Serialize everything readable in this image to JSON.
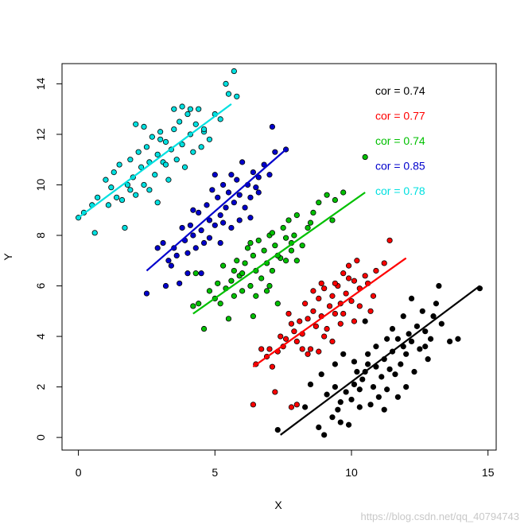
{
  "chart_data": {
    "type": "scatter",
    "xlabel": "X",
    "ylabel": "Y",
    "xlim": [
      -0.6,
      15.3
    ],
    "ylim": [
      -0.5,
      14.8
    ],
    "xticks": [
      0,
      5,
      10,
      15
    ],
    "yticks": [
      0,
      2,
      4,
      6,
      8,
      10,
      12,
      14
    ],
    "grid": false,
    "legend_position": "top-right",
    "series": [
      {
        "color": "#000000",
        "label": "cor = 0.74",
        "fit": [
          [
            7.4,
            0.1
          ],
          [
            14.7,
            6.0
          ]
        ],
        "points": [
          [
            7.3,
            0.3
          ],
          [
            8.3,
            1.2
          ],
          [
            8.8,
            0.4
          ],
          [
            9.0,
            0.1
          ],
          [
            9.3,
            0.8
          ],
          [
            9.5,
            1.1
          ],
          [
            9.6,
            0.6
          ],
          [
            9.9,
            0.5
          ],
          [
            8.5,
            2.1
          ],
          [
            8.9,
            2.5
          ],
          [
            9.1,
            1.7
          ],
          [
            9.4,
            2.0
          ],
          [
            9.6,
            1.4
          ],
          [
            9.8,
            1.8
          ],
          [
            10.0,
            1.5
          ],
          [
            10.1,
            2.1
          ],
          [
            10.2,
            2.6
          ],
          [
            10.3,
            1.9
          ],
          [
            10.4,
            2.3
          ],
          [
            10.5,
            2.6
          ],
          [
            10.6,
            2.9
          ],
          [
            10.7,
            1.3
          ],
          [
            10.8,
            2.0
          ],
          [
            10.9,
            2.8
          ],
          [
            11.0,
            1.6
          ],
          [
            11.1,
            2.4
          ],
          [
            11.2,
            3.1
          ],
          [
            11.3,
            1.9
          ],
          [
            11.4,
            2.7
          ],
          [
            11.5,
            3.4
          ],
          [
            11.6,
            2.5
          ],
          [
            11.7,
            3.9
          ],
          [
            11.8,
            2.9
          ],
          [
            11.9,
            3.6
          ],
          [
            12.0,
            3.3
          ],
          [
            12.1,
            4.1
          ],
          [
            12.2,
            3.8
          ],
          [
            12.3,
            2.6
          ],
          [
            12.4,
            4.4
          ],
          [
            12.5,
            3.5
          ],
          [
            12.6,
            5.0
          ],
          [
            12.7,
            4.2
          ],
          [
            12.8,
            3.1
          ],
          [
            12.9,
            3.9
          ],
          [
            13.0,
            4.8
          ],
          [
            13.1,
            5.3
          ],
          [
            13.2,
            6.0
          ],
          [
            13.3,
            4.5
          ],
          [
            13.6,
            3.8
          ],
          [
            13.9,
            3.9
          ],
          [
            14.7,
            5.9
          ],
          [
            12.2,
            5.5
          ],
          [
            11.9,
            4.8
          ],
          [
            10.5,
            4.6
          ],
          [
            10.9,
            3.6
          ],
          [
            11.3,
            3.9
          ],
          [
            10.1,
            3.0
          ],
          [
            9.7,
            3.3
          ],
          [
            10.6,
            3.3
          ],
          [
            11.5,
            4.3
          ],
          [
            12.0,
            2.0
          ],
          [
            11.2,
            1.1
          ],
          [
            10.3,
            1.2
          ],
          [
            9.4,
            2.9
          ],
          [
            12.7,
            3.6
          ],
          [
            11.7,
            1.6
          ]
        ]
      },
      {
        "color": "#ff0000",
        "label": "cor = 0.77",
        "fit": [
          [
            6.4,
            2.8
          ],
          [
            12.0,
            7.1
          ]
        ],
        "points": [
          [
            6.4,
            1.3
          ],
          [
            6.5,
            2.9
          ],
          [
            6.7,
            3.5
          ],
          [
            6.9,
            3.2
          ],
          [
            7.1,
            2.8
          ],
          [
            7.3,
            3.4
          ],
          [
            7.4,
            4.0
          ],
          [
            7.5,
            3.6
          ],
          [
            7.6,
            3.9
          ],
          [
            7.8,
            4.5
          ],
          [
            7.9,
            4.2
          ],
          [
            8.0,
            3.8
          ],
          [
            8.1,
            4.6
          ],
          [
            8.2,
            4.1
          ],
          [
            8.3,
            5.3
          ],
          [
            8.4,
            4.7
          ],
          [
            8.5,
            3.5
          ],
          [
            8.6,
            5.0
          ],
          [
            8.7,
            4.4
          ],
          [
            8.8,
            5.5
          ],
          [
            8.9,
            4.8
          ],
          [
            9.0,
            5.9
          ],
          [
            9.1,
            4.3
          ],
          [
            9.2,
            5.2
          ],
          [
            9.3,
            5.6
          ],
          [
            9.4,
            4.9
          ],
          [
            9.5,
            6.0
          ],
          [
            9.6,
            5.3
          ],
          [
            9.7,
            6.5
          ],
          [
            9.8,
            5.7
          ],
          [
            9.9,
            6.8
          ],
          [
            10.0,
            5.4
          ],
          [
            10.1,
            6.2
          ],
          [
            10.2,
            7.0
          ],
          [
            10.3,
            5.9
          ],
          [
            10.5,
            6.4
          ],
          [
            10.7,
            5.0
          ],
          [
            10.9,
            6.6
          ],
          [
            11.2,
            6.9
          ],
          [
            11.4,
            7.8
          ],
          [
            7.2,
            1.8
          ],
          [
            7.8,
            1.2
          ],
          [
            8.0,
            1.3
          ],
          [
            8.4,
            3.3
          ],
          [
            9.3,
            3.8
          ],
          [
            9.6,
            4.5
          ],
          [
            10.1,
            4.6
          ],
          [
            9.0,
            4.0
          ],
          [
            8.8,
            3.4
          ],
          [
            10.3,
            5.2
          ],
          [
            9.9,
            6.3
          ],
          [
            10.6,
            6.1
          ],
          [
            7.7,
            4.9
          ],
          [
            8.2,
            3.5
          ],
          [
            9.4,
            6.1
          ],
          [
            8.6,
            5.8
          ],
          [
            10.8,
            5.6
          ],
          [
            7.0,
            3.5
          ],
          [
            8.9,
            6.1
          ],
          [
            9.7,
            4.9
          ]
        ]
      },
      {
        "color": "#00c000",
        "label": "cor = 0.74",
        "fit": [
          [
            4.2,
            4.9
          ],
          [
            10.5,
            9.7
          ]
        ],
        "points": [
          [
            4.2,
            5.2
          ],
          [
            4.4,
            5.3
          ],
          [
            4.3,
            6.5
          ],
          [
            4.6,
            4.3
          ],
          [
            4.8,
            5.8
          ],
          [
            5.0,
            5.5
          ],
          [
            5.1,
            6.1
          ],
          [
            5.2,
            5.3
          ],
          [
            5.3,
            6.8
          ],
          [
            5.4,
            5.9
          ],
          [
            5.5,
            4.7
          ],
          [
            5.6,
            6.2
          ],
          [
            5.7,
            5.6
          ],
          [
            5.8,
            7.0
          ],
          [
            5.9,
            6.4
          ],
          [
            6.0,
            5.8
          ],
          [
            6.1,
            6.9
          ],
          [
            6.2,
            7.5
          ],
          [
            6.3,
            6.0
          ],
          [
            6.4,
            7.2
          ],
          [
            6.5,
            6.6
          ],
          [
            6.6,
            7.8
          ],
          [
            6.7,
            6.3
          ],
          [
            6.8,
            7.4
          ],
          [
            6.9,
            6.9
          ],
          [
            7.0,
            8.0
          ],
          [
            7.1,
            6.6
          ],
          [
            7.2,
            7.6
          ],
          [
            7.3,
            5.3
          ],
          [
            7.4,
            7.1
          ],
          [
            7.5,
            8.3
          ],
          [
            7.6,
            7.0
          ],
          [
            7.7,
            8.6
          ],
          [
            7.8,
            7.4
          ],
          [
            7.9,
            8.0
          ],
          [
            8.0,
            8.8
          ],
          [
            8.2,
            7.6
          ],
          [
            8.4,
            8.3
          ],
          [
            8.6,
            8.9
          ],
          [
            8.8,
            9.3
          ],
          [
            9.1,
            9.6
          ],
          [
            9.4,
            9.4
          ],
          [
            9.7,
            9.7
          ],
          [
            10.5,
            11.1
          ],
          [
            9.3,
            8.6
          ],
          [
            6.4,
            4.8
          ],
          [
            7.0,
            6.0
          ],
          [
            8.0,
            7.0
          ],
          [
            7.3,
            7.2
          ],
          [
            6.0,
            6.5
          ],
          [
            6.9,
            5.8
          ],
          [
            8.5,
            8.5
          ],
          [
            5.7,
            6.6
          ],
          [
            7.6,
            7.9
          ],
          [
            6.3,
            7.7
          ],
          [
            7.1,
            8.1
          ],
          [
            6.5,
            5.6
          ],
          [
            7.8,
            7.7
          ]
        ]
      },
      {
        "color": "#0000cc",
        "label": "cor = 0.85",
        "fit": [
          [
            2.5,
            6.6
          ],
          [
            7.6,
            11.4
          ]
        ],
        "points": [
          [
            2.5,
            5.7
          ],
          [
            2.9,
            7.5
          ],
          [
            3.1,
            7.7
          ],
          [
            3.3,
            7.0
          ],
          [
            3.4,
            6.8
          ],
          [
            3.6,
            7.2
          ],
          [
            3.7,
            6.1
          ],
          [
            3.8,
            8.3
          ],
          [
            3.9,
            7.8
          ],
          [
            4.0,
            6.5
          ],
          [
            4.1,
            8.4
          ],
          [
            4.2,
            8.0
          ],
          [
            4.3,
            7.5
          ],
          [
            4.4,
            8.9
          ],
          [
            4.5,
            8.2
          ],
          [
            4.6,
            7.7
          ],
          [
            4.7,
            9.2
          ],
          [
            4.8,
            8.6
          ],
          [
            4.9,
            9.8
          ],
          [
            5.0,
            8.4
          ],
          [
            5.1,
            9.5
          ],
          [
            5.2,
            8.8
          ],
          [
            5.3,
            10.0
          ],
          [
            5.4,
            9.1
          ],
          [
            5.5,
            9.7
          ],
          [
            5.6,
            8.3
          ],
          [
            5.7,
            9.3
          ],
          [
            5.8,
            10.2
          ],
          [
            5.9,
            9.6
          ],
          [
            6.0,
            10.9
          ],
          [
            6.1,
            9.1
          ],
          [
            6.2,
            10.0
          ],
          [
            6.3,
            9.5
          ],
          [
            6.4,
            10.5
          ],
          [
            6.5,
            9.9
          ],
          [
            6.6,
            10.3
          ],
          [
            6.8,
            10.8
          ],
          [
            7.0,
            10.4
          ],
          [
            7.2,
            11.3
          ],
          [
            7.6,
            11.4
          ],
          [
            6.3,
            8.7
          ],
          [
            7.1,
            12.3
          ],
          [
            3.2,
            6.0
          ],
          [
            4.5,
            6.5
          ],
          [
            5.3,
            8.5
          ],
          [
            5.9,
            8.6
          ],
          [
            4.0,
            7.3
          ],
          [
            4.8,
            7.9
          ],
          [
            3.5,
            7.5
          ],
          [
            5.6,
            10.4
          ],
          [
            4.2,
            9.0
          ],
          [
            5.0,
            10.4
          ],
          [
            6.6,
            9.7
          ],
          [
            5.2,
            7.7
          ]
        ]
      },
      {
        "color": "#00e0e0",
        "label": "cor = 0.78",
        "fit": [
          [
            0.0,
            8.7
          ],
          [
            5.6,
            13.2
          ]
        ],
        "points": [
          [
            0.0,
            8.7
          ],
          [
            0.2,
            8.9
          ],
          [
            0.5,
            9.2
          ],
          [
            0.6,
            8.1
          ],
          [
            0.7,
            9.5
          ],
          [
            1.0,
            10.2
          ],
          [
            1.2,
            9.9
          ],
          [
            1.3,
            10.5
          ],
          [
            1.4,
            9.5
          ],
          [
            1.5,
            10.8
          ],
          [
            1.6,
            9.4
          ],
          [
            1.7,
            8.3
          ],
          [
            1.8,
            10.0
          ],
          [
            1.9,
            11.0
          ],
          [
            2.0,
            10.3
          ],
          [
            2.1,
            9.6
          ],
          [
            2.2,
            11.3
          ],
          [
            2.3,
            10.7
          ],
          [
            2.4,
            10.0
          ],
          [
            2.5,
            11.5
          ],
          [
            2.6,
            10.9
          ],
          [
            2.7,
            11.9
          ],
          [
            2.8,
            10.4
          ],
          [
            2.9,
            11.2
          ],
          [
            3.0,
            12.1
          ],
          [
            3.1,
            10.9
          ],
          [
            3.2,
            11.7
          ],
          [
            3.3,
            10.2
          ],
          [
            3.4,
            11.4
          ],
          [
            3.5,
            12.2
          ],
          [
            3.6,
            11.0
          ],
          [
            3.7,
            12.5
          ],
          [
            3.8,
            11.6
          ],
          [
            3.9,
            10.7
          ],
          [
            4.0,
            12.8
          ],
          [
            4.1,
            12.0
          ],
          [
            4.2,
            11.3
          ],
          [
            4.3,
            12.4
          ],
          [
            4.4,
            13.0
          ],
          [
            4.6,
            12.1
          ],
          [
            4.8,
            11.8
          ],
          [
            5.0,
            12.8
          ],
          [
            5.2,
            12.6
          ],
          [
            5.4,
            14.0
          ],
          [
            5.5,
            13.6
          ],
          [
            5.7,
            14.5
          ],
          [
            5.8,
            13.5
          ],
          [
            2.1,
            12.4
          ],
          [
            3.5,
            13.0
          ],
          [
            4.6,
            12.2
          ],
          [
            2.9,
            9.3
          ],
          [
            1.1,
            9.2
          ],
          [
            3.8,
            13.1
          ],
          [
            2.4,
            12.3
          ],
          [
            3.2,
            10.8
          ],
          [
            4.5,
            11.5
          ],
          [
            1.9,
            9.8
          ],
          [
            3.0,
            11.8
          ],
          [
            2.6,
            9.8
          ],
          [
            4.1,
            13.0
          ]
        ]
      }
    ]
  },
  "watermark": "https://blog.csdn.net/qq_40794743"
}
